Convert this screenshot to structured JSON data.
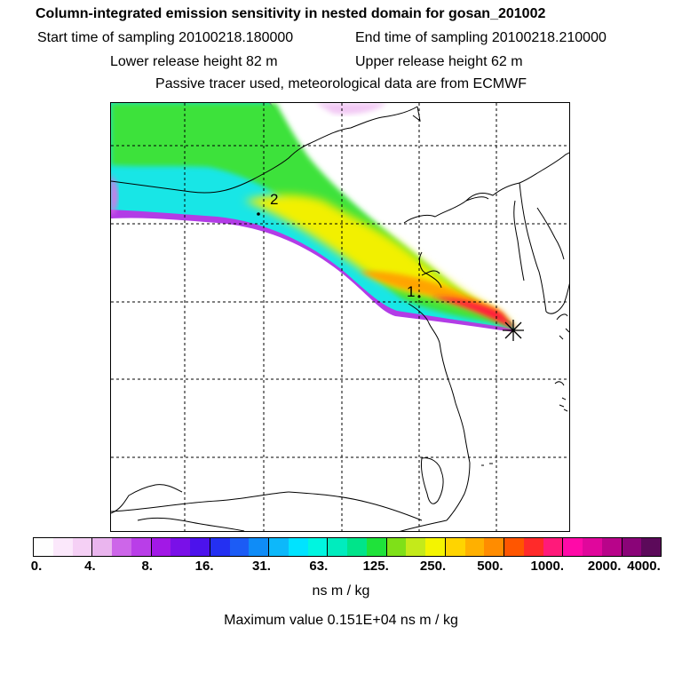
{
  "header": {
    "title": "Column-integrated emission sensitivity in nested domain for gosan_201002",
    "start_label": "Start time of sampling 20100218.180000",
    "end_label": "End time of sampling 20100218.210000",
    "lower_label": "Lower release height   82 m",
    "upper_label": "Upper release height   62 m",
    "tracer_label": "Passive tracer used, meteorological data are from ECMWF"
  },
  "map": {
    "markers": [
      {
        "label": "1"
      },
      {
        "label": "2"
      }
    ],
    "release_site_icon": "star-marker-icon"
  },
  "colorbar": {
    "colors": [
      "#fefefe",
      "#fbe8fb",
      "#f5d0f5",
      "#eab5ee",
      "#cd66e9",
      "#b93ee8",
      "#a218e6",
      "#7a10e8",
      "#4c12ec",
      "#2430f2",
      "#1c5cf5",
      "#0f8cf7",
      "#0db8fa",
      "#00e3ff",
      "#00f5e0",
      "#00ecbe",
      "#00e48a",
      "#1fe23a",
      "#7fe018",
      "#c4ea1a",
      "#f4f400",
      "#ffd400",
      "#ffb000",
      "#ff8c00",
      "#ff5600",
      "#ff2a2a",
      "#ff1a7a",
      "#ff0aa8",
      "#e0079c",
      "#b8048a",
      "#8a0478",
      "#5c0a5a"
    ],
    "tick_labels": [
      "0.",
      "4.",
      "8.",
      "16.",
      "31.",
      "63.",
      "125.",
      "250.",
      "500.",
      "1000.",
      "2000.",
      "4000."
    ],
    "units": "ns m / kg",
    "max_value_text": "Maximum value  0.151E+04 ns m / kg"
  }
}
